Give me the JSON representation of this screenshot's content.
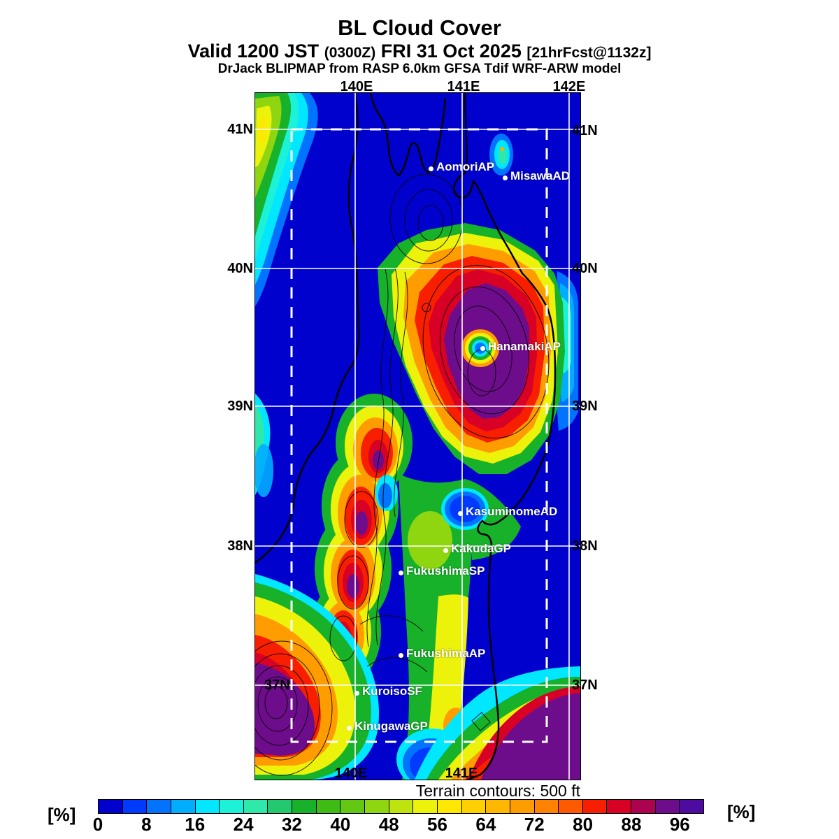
{
  "header": {
    "title": "BL Cloud Cover",
    "valid_prefix": "Valid 1200 JST",
    "valid_zulu": "(0300Z)",
    "valid_date": "FRI 31 Oct 2025",
    "valid_fcst": "[21hrFcst@1132z]",
    "model_line": "DrJack BLIPMAP from RASP 6.0km GFSA Tdif WRF-ARW model"
  },
  "map": {
    "lon_labels_top": [
      "140E",
      "141E",
      "142E"
    ],
    "lon_labels_bottom": [
      "140E",
      "141E"
    ],
    "lat_labels_left": [
      "41N",
      "40N",
      "39N",
      "38N"
    ],
    "lat_label_inside": "37N",
    "lat_labels_right": [
      "41N",
      "40N",
      "39N",
      "38N",
      "37N"
    ],
    "stations": [
      "AomoriAP",
      "MisawaAD",
      "HanamakiAP",
      "KasuminomeAD",
      "KakudaGP",
      "FukushimaSP",
      "FukushimaAP",
      "KuroisoSF",
      "KinugawaGP"
    ]
  },
  "colorbar": {
    "unit": "[%]",
    "tick_labels": [
      "0",
      "8",
      "16",
      "24",
      "32",
      "40",
      "48",
      "56",
      "64",
      "72",
      "80",
      "88",
      "96"
    ],
    "segment_colors": [
      "#0101CE",
      "#013AFF",
      "#0173FF",
      "#01ADFF",
      "#00E7FF",
      "#1BF2D8",
      "#2EE9A9",
      "#22C96E",
      "#17B22A",
      "#3FBC13",
      "#63C813",
      "#8FD611",
      "#BEE30F",
      "#EDF20B",
      "#FFE800",
      "#FFD000",
      "#FFB700",
      "#FF9D00",
      "#FF8200",
      "#FF5A00",
      "#F81E00",
      "#D90026",
      "#AB0350",
      "#6E0D8C",
      "#4D0B9F"
    ],
    "value_min": 0,
    "value_max": 100,
    "value_step": 4,
    "note": "Terrain contours: 500 ft"
  }
}
